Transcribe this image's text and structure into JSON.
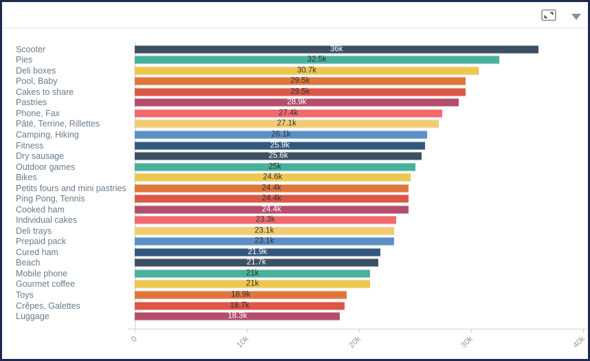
{
  "window": {
    "border_color": "#1E2A4D",
    "background": "#FFFFFF"
  },
  "header": {
    "icons": [
      {
        "name": "maximize-icon"
      },
      {
        "name": "dropdown-caret-icon"
      }
    ],
    "separator_color": "#E4E4E8"
  },
  "chart_data": {
    "type": "bar",
    "orientation": "horizontal",
    "title": "",
    "categories": [
      "Scooter",
      "Pies",
      "Deli boxes",
      "Pool, Baby",
      "Cakes to share",
      "Pastries",
      "Phone, Fax",
      "Pâté, Terrine, Rillettes",
      "Camping, Hiking",
      "Fitness",
      "Dry sausage",
      "Outdoor games",
      "Bikes",
      "Petits fours and mini pastries",
      "Ping Pong, Tennis",
      "Cooked ham",
      "Individual cakes",
      "Deli trays",
      "Prepaid pack",
      "Cured ham",
      "Beach",
      "Mobile phone",
      "Gourmet coffee",
      "Toys",
      "Crêpes, Galettes",
      "Luggage"
    ],
    "values": [
      36000,
      32500,
      30700,
      29500,
      29500,
      28900,
      27400,
      27100,
      26100,
      25900,
      25600,
      25000,
      24600,
      24400,
      24400,
      24400,
      23300,
      23100,
      23100,
      21900,
      21700,
      21000,
      21000,
      18900,
      18700,
      18300
    ],
    "value_labels": [
      "36k",
      "32.5k",
      "30.7k",
      "29.5k",
      "29.5k",
      "28.9k",
      "27.4k",
      "27.1k",
      "26.1k",
      "25.9k",
      "25.6k",
      "25k",
      "24.6k",
      "24.4k",
      "24.4k",
      "24.4k",
      "23.3k",
      "23.1k",
      "23.1k",
      "21.9k",
      "21.7k",
      "21k",
      "21k",
      "18.9k",
      "18.7k",
      "18.3k"
    ],
    "xlabel": "",
    "ylabel": "",
    "xlim": [
      0,
      40000
    ],
    "x_ticks": [
      {
        "value": 0,
        "label": "0"
      },
      {
        "value": 10000,
        "label": "10k"
      },
      {
        "value": 20000,
        "label": "20k"
      },
      {
        "value": 30000,
        "label": "30k"
      },
      {
        "value": 40000,
        "label": "40k"
      }
    ],
    "grid": false,
    "legend": false,
    "value_label_position": "center",
    "palette": [
      "#3C5063",
      "#46B29B",
      "#EDC74E",
      "#E1763C",
      "#DD5746",
      "#B44D6B",
      "#F1696D",
      "#F3CC71",
      "#5B90C6",
      "#33587F"
    ],
    "light_text_palette_indices": [
      0,
      5,
      9
    ],
    "colors": {
      "category_label": "#6B7A88",
      "axis_label": "#999999",
      "axis_line": "#CFCFCF",
      "value_text_dark": "#333333",
      "value_text_light": "#FFFFFF"
    }
  }
}
